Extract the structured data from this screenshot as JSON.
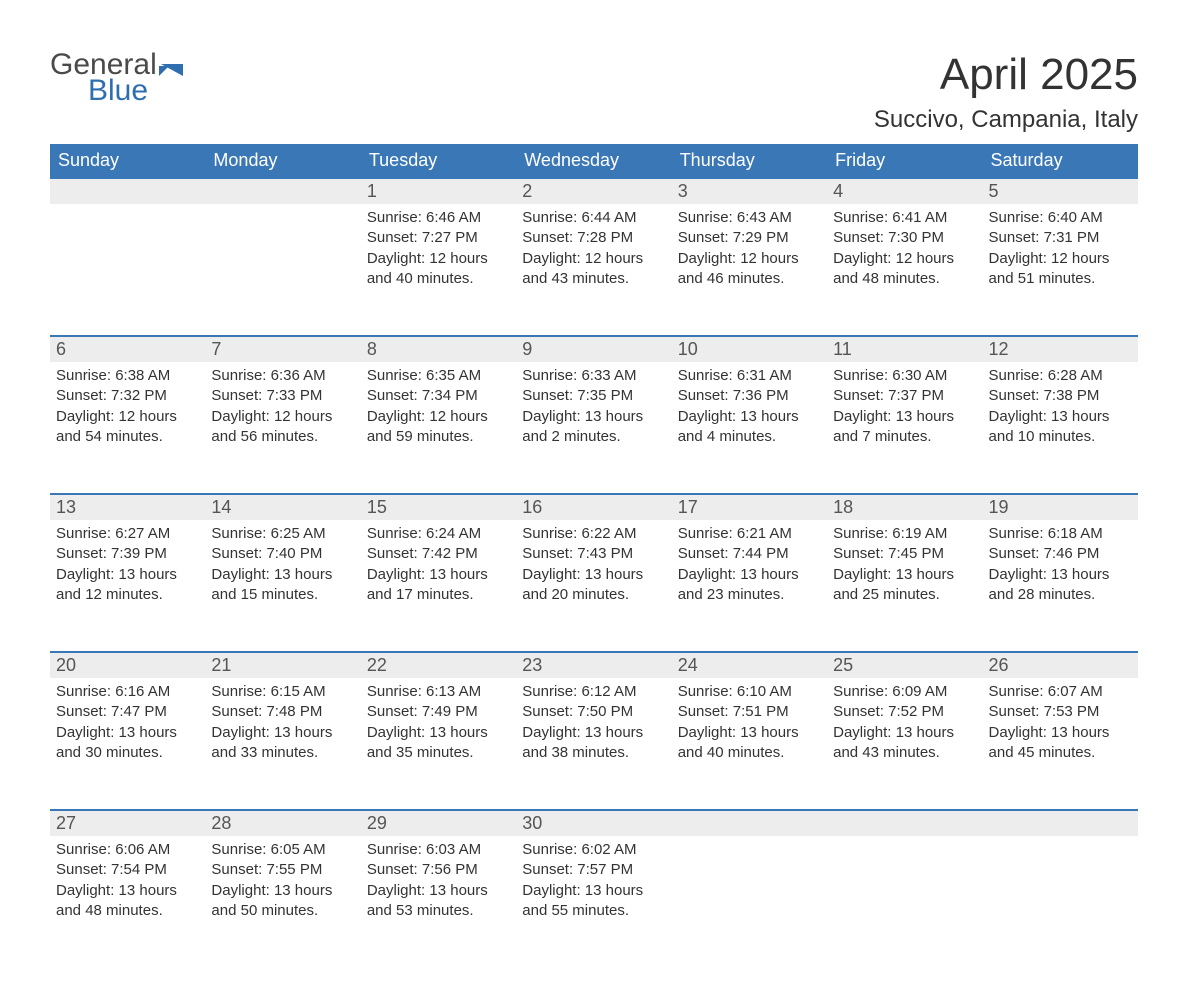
{
  "logo": {
    "text1": "General",
    "text2": "Blue",
    "flag_color": "#2f6fb0"
  },
  "title": "April 2025",
  "location": "Succivo, Campania, Italy",
  "theme": {
    "header_bg": "#3a77b7",
    "header_fg": "#ffffff",
    "daynum_bg": "#ededed",
    "row_border": "#3a77b7",
    "text_color": "#333333",
    "page_bg": "#ffffff"
  },
  "weekdays": [
    "Sunday",
    "Monday",
    "Tuesday",
    "Wednesday",
    "Thursday",
    "Friday",
    "Saturday"
  ],
  "weeks": [
    [
      null,
      null,
      {
        "n": "1",
        "sr": "6:46 AM",
        "ss": "7:27 PM",
        "dl": "12 hours and 40 minutes."
      },
      {
        "n": "2",
        "sr": "6:44 AM",
        "ss": "7:28 PM",
        "dl": "12 hours and 43 minutes."
      },
      {
        "n": "3",
        "sr": "6:43 AM",
        "ss": "7:29 PM",
        "dl": "12 hours and 46 minutes."
      },
      {
        "n": "4",
        "sr": "6:41 AM",
        "ss": "7:30 PM",
        "dl": "12 hours and 48 minutes."
      },
      {
        "n": "5",
        "sr": "6:40 AM",
        "ss": "7:31 PM",
        "dl": "12 hours and 51 minutes."
      }
    ],
    [
      {
        "n": "6",
        "sr": "6:38 AM",
        "ss": "7:32 PM",
        "dl": "12 hours and 54 minutes."
      },
      {
        "n": "7",
        "sr": "6:36 AM",
        "ss": "7:33 PM",
        "dl": "12 hours and 56 minutes."
      },
      {
        "n": "8",
        "sr": "6:35 AM",
        "ss": "7:34 PM",
        "dl": "12 hours and 59 minutes."
      },
      {
        "n": "9",
        "sr": "6:33 AM",
        "ss": "7:35 PM",
        "dl": "13 hours and 2 minutes."
      },
      {
        "n": "10",
        "sr": "6:31 AM",
        "ss": "7:36 PM",
        "dl": "13 hours and 4 minutes."
      },
      {
        "n": "11",
        "sr": "6:30 AM",
        "ss": "7:37 PM",
        "dl": "13 hours and 7 minutes."
      },
      {
        "n": "12",
        "sr": "6:28 AM",
        "ss": "7:38 PM",
        "dl": "13 hours and 10 minutes."
      }
    ],
    [
      {
        "n": "13",
        "sr": "6:27 AM",
        "ss": "7:39 PM",
        "dl": "13 hours and 12 minutes."
      },
      {
        "n": "14",
        "sr": "6:25 AM",
        "ss": "7:40 PM",
        "dl": "13 hours and 15 minutes."
      },
      {
        "n": "15",
        "sr": "6:24 AM",
        "ss": "7:42 PM",
        "dl": "13 hours and 17 minutes."
      },
      {
        "n": "16",
        "sr": "6:22 AM",
        "ss": "7:43 PM",
        "dl": "13 hours and 20 minutes."
      },
      {
        "n": "17",
        "sr": "6:21 AM",
        "ss": "7:44 PM",
        "dl": "13 hours and 23 minutes."
      },
      {
        "n": "18",
        "sr": "6:19 AM",
        "ss": "7:45 PM",
        "dl": "13 hours and 25 minutes."
      },
      {
        "n": "19",
        "sr": "6:18 AM",
        "ss": "7:46 PM",
        "dl": "13 hours and 28 minutes."
      }
    ],
    [
      {
        "n": "20",
        "sr": "6:16 AM",
        "ss": "7:47 PM",
        "dl": "13 hours and 30 minutes."
      },
      {
        "n": "21",
        "sr": "6:15 AM",
        "ss": "7:48 PM",
        "dl": "13 hours and 33 minutes."
      },
      {
        "n": "22",
        "sr": "6:13 AM",
        "ss": "7:49 PM",
        "dl": "13 hours and 35 minutes."
      },
      {
        "n": "23",
        "sr": "6:12 AM",
        "ss": "7:50 PM",
        "dl": "13 hours and 38 minutes."
      },
      {
        "n": "24",
        "sr": "6:10 AM",
        "ss": "7:51 PM",
        "dl": "13 hours and 40 minutes."
      },
      {
        "n": "25",
        "sr": "6:09 AM",
        "ss": "7:52 PM",
        "dl": "13 hours and 43 minutes."
      },
      {
        "n": "26",
        "sr": "6:07 AM",
        "ss": "7:53 PM",
        "dl": "13 hours and 45 minutes."
      }
    ],
    [
      {
        "n": "27",
        "sr": "6:06 AM",
        "ss": "7:54 PM",
        "dl": "13 hours and 48 minutes."
      },
      {
        "n": "28",
        "sr": "6:05 AM",
        "ss": "7:55 PM",
        "dl": "13 hours and 50 minutes."
      },
      {
        "n": "29",
        "sr": "6:03 AM",
        "ss": "7:56 PM",
        "dl": "13 hours and 53 minutes."
      },
      {
        "n": "30",
        "sr": "6:02 AM",
        "ss": "7:57 PM",
        "dl": "13 hours and 55 minutes."
      },
      null,
      null,
      null
    ]
  ],
  "labels": {
    "sunrise": "Sunrise:",
    "sunset": "Sunset:",
    "daylight": "Daylight:"
  }
}
